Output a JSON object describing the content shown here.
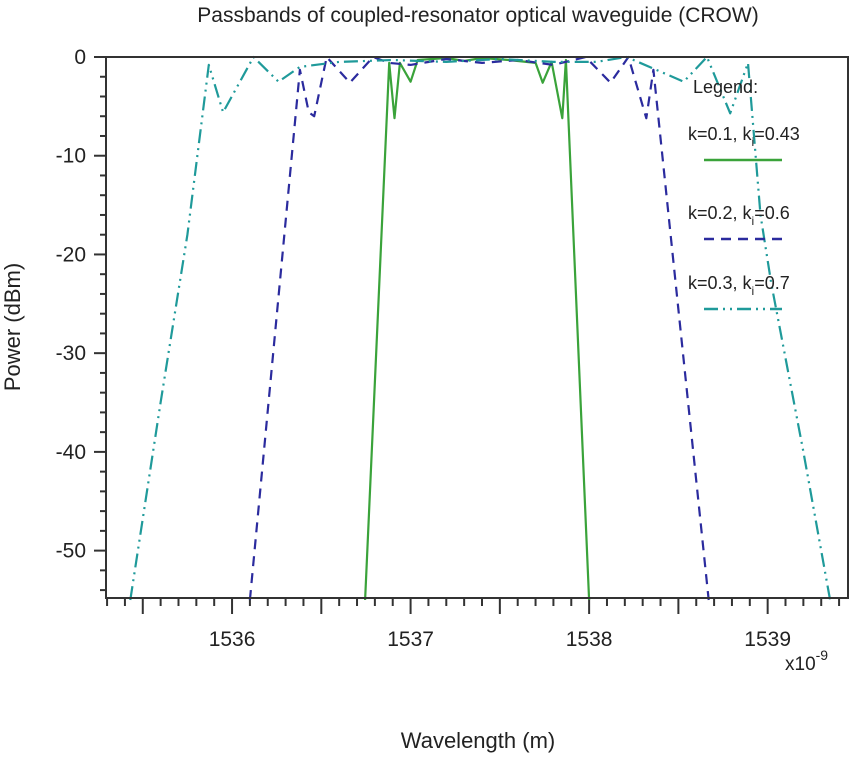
{
  "chart_data": {
    "type": "line",
    "title": "Passbands of coupled-resonator optical waveguide (CROW)",
    "xlabel": "Wavelength (m)",
    "ylabel": "Power (dBm)",
    "x_exponent_base": "x10",
    "x_exponent_power": "-9",
    "xlim": [
      1535.294,
      1539.45
    ],
    "ylim": [
      -54.8,
      0
    ],
    "xticks": [
      1536,
      1537,
      1538,
      1539
    ],
    "xtick_labels": [
      "1536",
      "1537",
      "1538",
      "1539"
    ],
    "yticks": [
      0,
      -10,
      -20,
      -30,
      -40,
      -50
    ],
    "ytick_labels": [
      "0",
      "-10",
      "-20",
      "-30",
      "-40",
      "-50"
    ],
    "grid": false,
    "legend": {
      "title": "Legend:",
      "placement": "top-right",
      "entries": [
        {
          "main": "k=0.1, k",
          "sub": "i",
          "tail": "=0.43"
        },
        {
          "main": "k=0.2, k",
          "sub": "i",
          "tail": "=0.6"
        },
        {
          "main": "k=0.3, k",
          "sub": "i",
          "tail": "=0.7"
        }
      ]
    },
    "series": [
      {
        "name": "k=0.1, ki=0.43",
        "color": "#3aa33a",
        "style": "solid",
        "x": [
          1536.745,
          1536.88,
          1536.91,
          1536.94,
          1537.0,
          1537.04,
          1537.2,
          1537.3,
          1537.4,
          1537.55,
          1537.7,
          1537.74,
          1537.79,
          1537.85,
          1537.87,
          1538.0
        ],
        "y": [
          -55,
          -0.6,
          -6.2,
          -0.6,
          -2.5,
          -0.3,
          -0.1,
          -0.4,
          -0.1,
          -0.3,
          -0.6,
          -2.6,
          -0.5,
          -6.2,
          -0.3,
          -55
        ]
      },
      {
        "name": "k=0.2, ki=0.6",
        "color": "#2b2b9e",
        "style": "dashed",
        "x": [
          1536.1,
          1536.38,
          1536.43,
          1536.46,
          1536.53,
          1536.66,
          1536.79,
          1536.88,
          1537.0,
          1537.2,
          1537.4,
          1537.6,
          1537.8,
          1537.98,
          1538.12,
          1538.22,
          1538.32,
          1538.36,
          1538.67
        ],
        "y": [
          -55,
          -1.3,
          -5.6,
          -6.0,
          0,
          -2.6,
          0,
          -0.6,
          -0.8,
          -0.2,
          -0.6,
          -0.3,
          -0.8,
          0,
          -2.6,
          0,
          -6.2,
          -1.3,
          -55
        ]
      },
      {
        "name": "k=0.3, ki=0.7",
        "color": "#1f9a9a",
        "style": "dashdot",
        "x": [
          1535.43,
          1535.6,
          1535.75,
          1535.87,
          1535.95,
          1536.12,
          1536.26,
          1536.38,
          1536.6,
          1536.9,
          1537.2,
          1537.5,
          1537.8,
          1538.04,
          1538.21,
          1538.53,
          1538.66,
          1538.79,
          1538.89,
          1538.96,
          1539.02,
          1539.2,
          1539.35
        ],
        "y": [
          -55,
          -35,
          -18,
          -0.8,
          -5.6,
          0,
          -2.5,
          -1.0,
          -0.5,
          -0.3,
          -0.5,
          -0.2,
          -0.5,
          -0.5,
          0,
          -2.5,
          0,
          -5.7,
          -0.6,
          -16,
          -22.9,
          -40,
          -55
        ]
      }
    ]
  }
}
